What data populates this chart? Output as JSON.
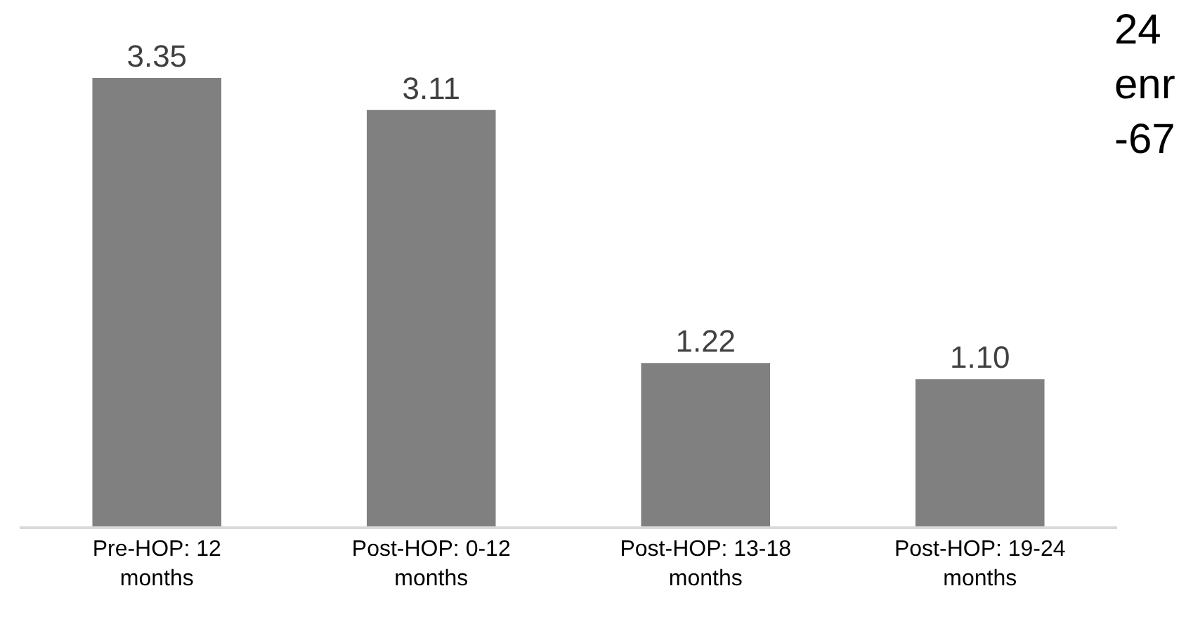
{
  "chart_data": {
    "type": "bar",
    "categories": [
      "Pre-HOP: 12 months",
      "Post-HOP: 0-12 months",
      "Post-HOP: 13-18 months",
      "Post-HOP: 19-24 months"
    ],
    "values": [
      3.35,
      3.11,
      1.22,
      1.1
    ],
    "value_labels": [
      "3.35",
      "3.11",
      "1.22",
      "1.10"
    ],
    "color": "#808080",
    "grid": false,
    "legend": false,
    "tick_labels": "x",
    "annotations": [
      "24\nenr\n-67"
    ]
  }
}
